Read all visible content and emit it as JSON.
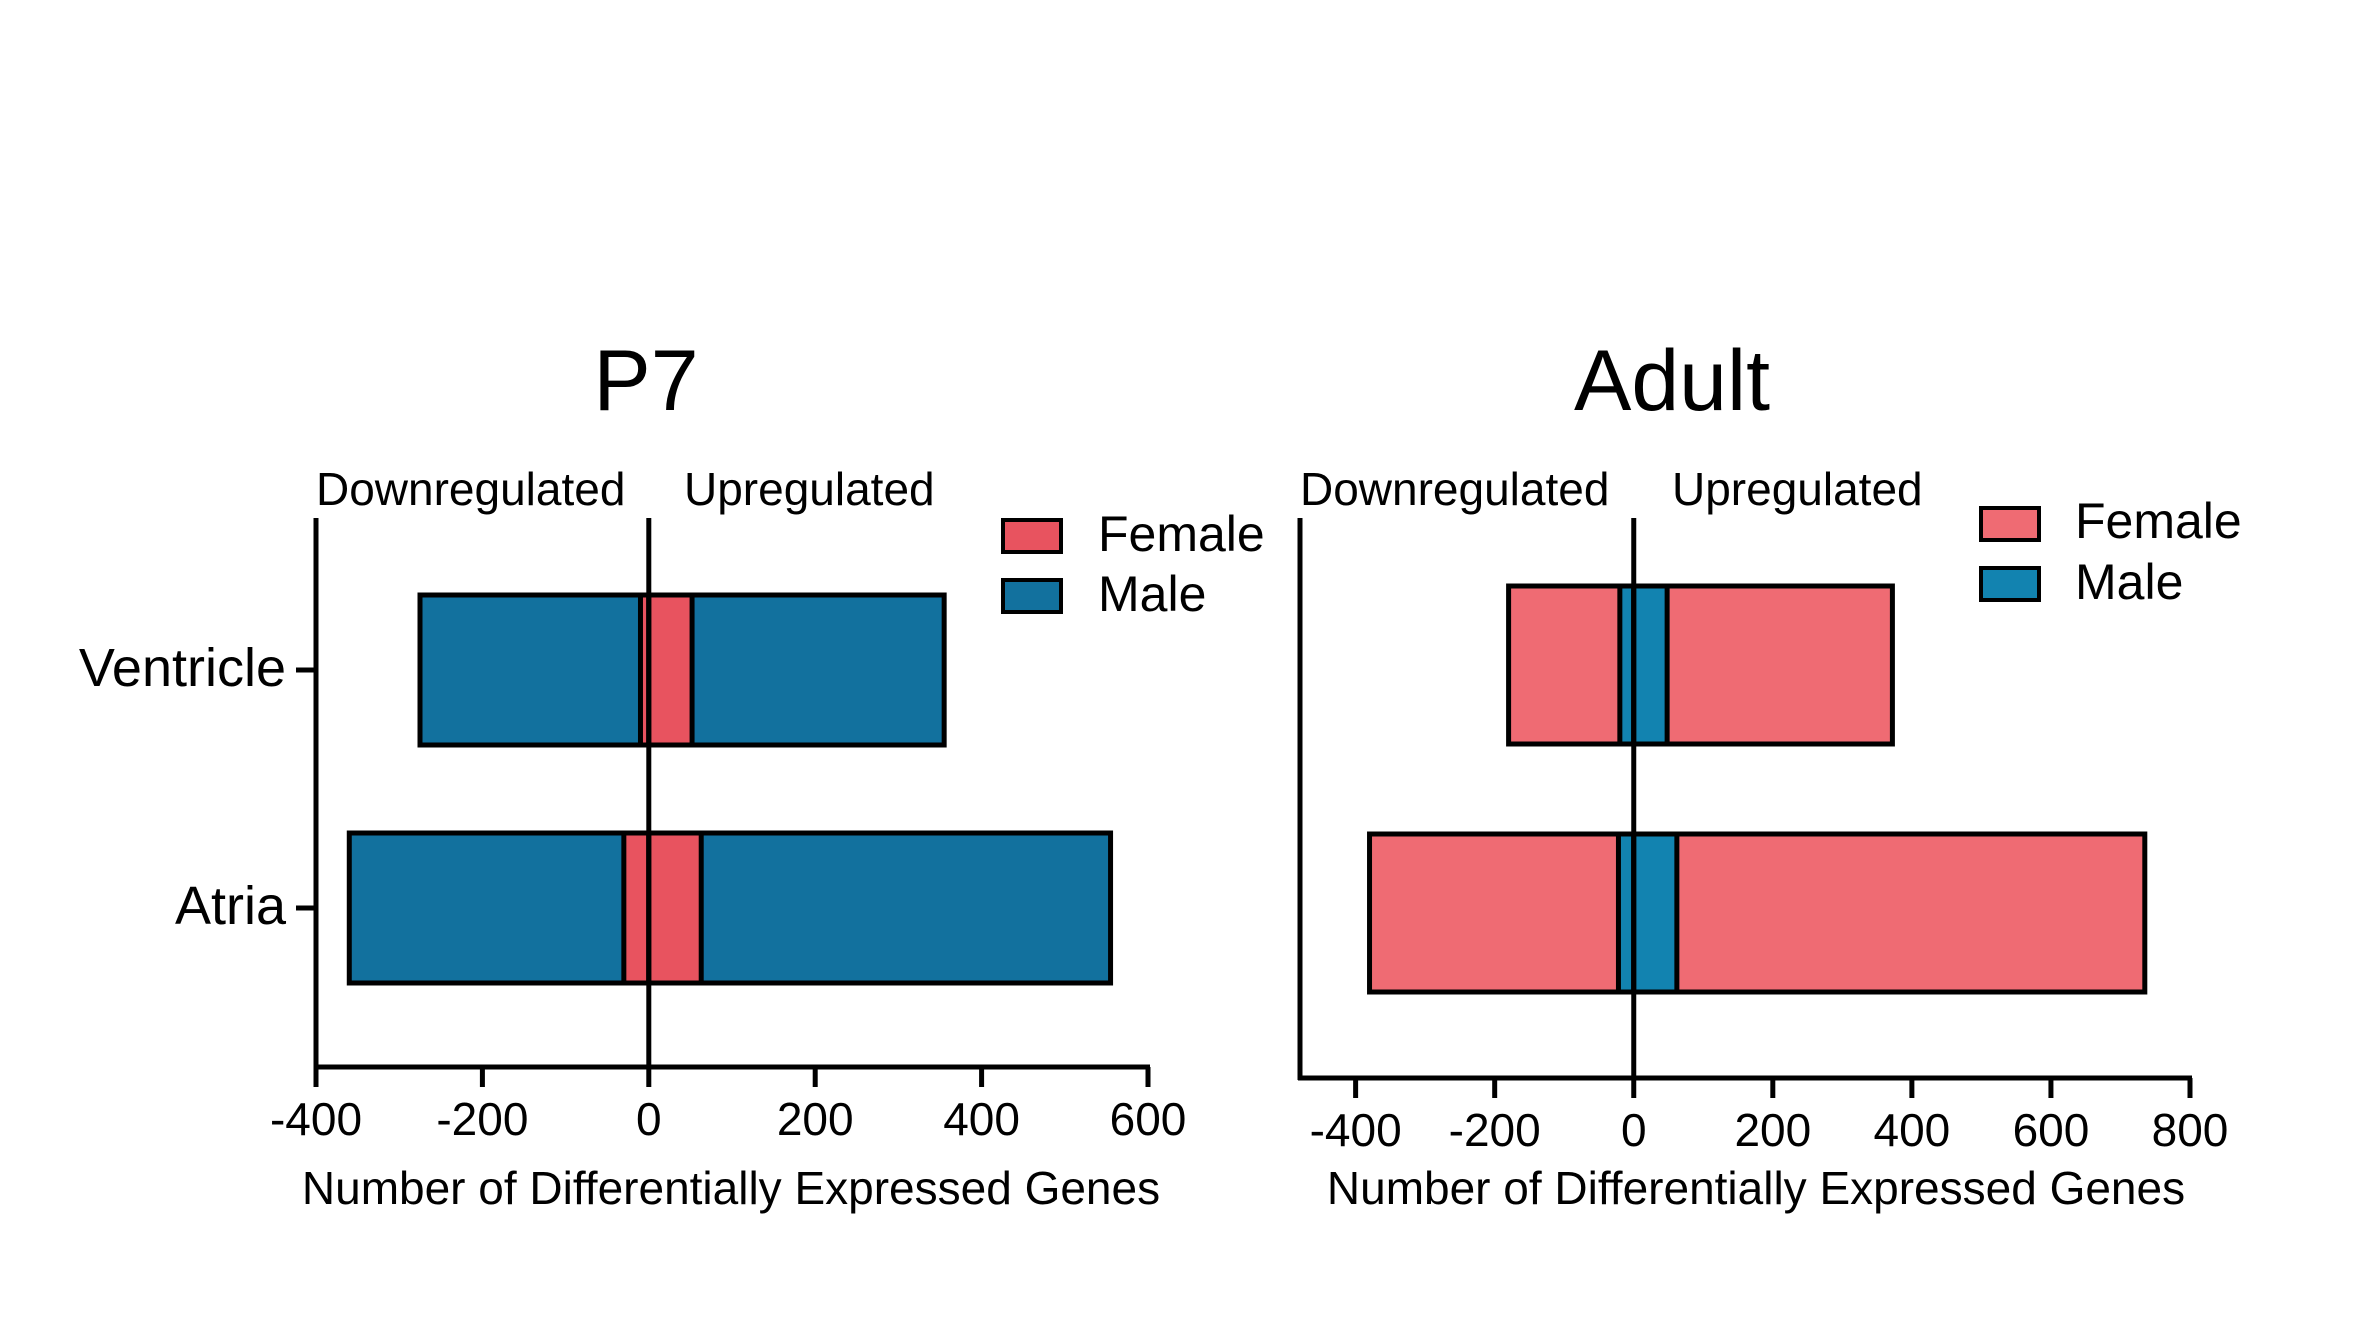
{
  "colors": {
    "female": "#e8535f",
    "male": "#12719e",
    "female_adult": "#ef6b73",
    "male_adult": "#1283b0"
  },
  "chart_data": [
    {
      "type": "bar",
      "orientation": "horizontal",
      "title": "P7",
      "xlabel": "Number of Differentially Expressed Genes",
      "ylabel": "",
      "region_labels": {
        "left": "Downregulated",
        "right": "Upregulated"
      },
      "categories": [
        "Ventricle",
        "Atria"
      ],
      "show_category_labels": true,
      "xlim": [
        -400,
        600
      ],
      "xticks": [
        -400,
        -200,
        0,
        200,
        400,
        600
      ],
      "xtick_labels": [
        "-400",
        "-200",
        "0",
        "200",
        "400",
        "600"
      ],
      "legend": {
        "position": "top-right",
        "entries": [
          "Female",
          "Male"
        ]
      },
      "series": [
        {
          "name": "Male",
          "color_key": "male",
          "layer": "back",
          "down": [
            -275,
            -360
          ],
          "up": [
            355,
            555
          ]
        },
        {
          "name": "Female",
          "color_key": "female",
          "layer": "front",
          "down": [
            -10,
            -30
          ],
          "up": [
            52,
            63
          ]
        }
      ]
    },
    {
      "type": "bar",
      "orientation": "horizontal",
      "title": "Adult",
      "xlabel": "Number of Differentially Expressed Genes",
      "ylabel": "",
      "region_labels": {
        "left": "Downregulated",
        "right": "Upregulated"
      },
      "categories": [
        "Ventricle",
        "Atria"
      ],
      "show_category_labels": false,
      "xlim": [
        -480,
        800
      ],
      "xticks": [
        -400,
        -200,
        0,
        200,
        400,
        600,
        800
      ],
      "xtick_labels": [
        "-400",
        "-200",
        "0",
        "200",
        "400",
        "600",
        "800"
      ],
      "legend": {
        "position": "top-right",
        "entries": [
          "Female",
          "Male"
        ]
      },
      "series": [
        {
          "name": "Female",
          "color_key": "female_adult",
          "layer": "back",
          "down": [
            -180,
            -380
          ],
          "up": [
            372,
            735
          ]
        },
        {
          "name": "Male",
          "color_key": "male_adult",
          "layer": "front",
          "down": [
            -20,
            -22
          ],
          "up": [
            48,
            62
          ]
        }
      ]
    }
  ]
}
